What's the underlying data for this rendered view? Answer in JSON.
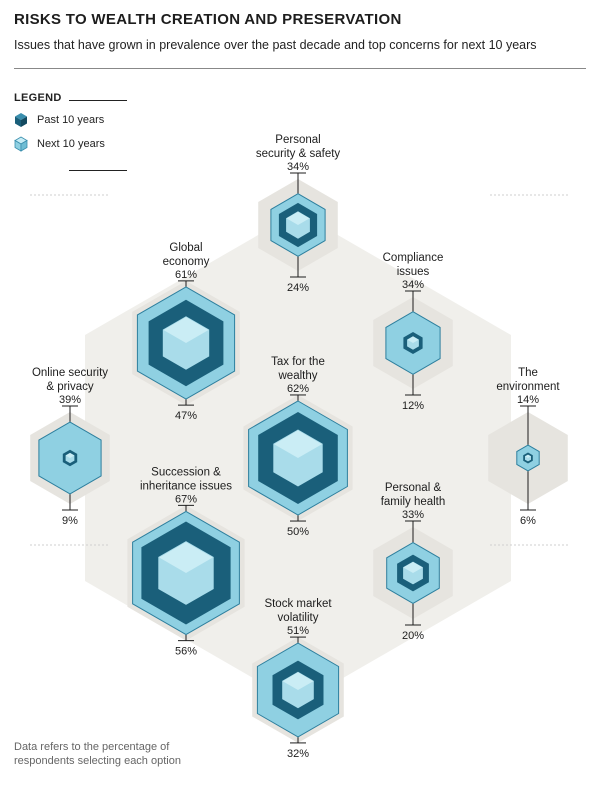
{
  "title": "RISKS TO WEALTH CREATION AND PRESERVATION",
  "subtitle": "Issues that have grown in prevalence over the past decade and top concerns for next 10 years",
  "legend": {
    "title": "LEGEND",
    "past": "Past 10 years",
    "next": "Next 10 years"
  },
  "footnote": "Data refers to the percentage of respondents selecting each option",
  "colors": {
    "past": "#1a5f7a",
    "next": "#8fd0e2",
    "hexbg": "#e6e4df",
    "track": "#f0efeb"
  },
  "chart_data": {
    "type": "hexagon-cube-comparison",
    "unit": "%",
    "series": [
      {
        "name": "Past 10 years"
      },
      {
        "name": "Next 10 years"
      }
    ],
    "items": [
      {
        "label": [
          "Personal",
          "security & safety"
        ],
        "next_label": "34%",
        "past_label": "24%",
        "next": 34,
        "past": 24
      },
      {
        "label": [
          "Global",
          "economy"
        ],
        "next_label": "61%",
        "past_label": "47%",
        "next": 61,
        "past": 47
      },
      {
        "label": [
          "Compliance",
          "issues"
        ],
        "next_label": "34%",
        "past_label": "12%",
        "next": 34,
        "past": 12
      },
      {
        "label": [
          "Online security",
          "& privacy"
        ],
        "next_label": "39%",
        "past_label": "9%",
        "next": 39,
        "past": 9
      },
      {
        "label": [
          "Tax for the",
          "wealthy"
        ],
        "next_label": "62%",
        "past_label": "50%",
        "next": 62,
        "past": 50
      },
      {
        "label": [
          "The",
          "environment"
        ],
        "next_label": "14%",
        "past_label": "6%",
        "next": 14,
        "past": 6
      },
      {
        "label": [
          "Succession &",
          "inheritance issues"
        ],
        "next_label": "67%",
        "past_label": "56%",
        "next": 67,
        "past": 56
      },
      {
        "label": [
          "Personal &",
          "family health"
        ],
        "next_label": "33%",
        "past_label": "20%",
        "next": 33,
        "past": 20
      },
      {
        "label": [
          "Stock market",
          "volatility"
        ],
        "next_label": "51%",
        "past_label": "32%",
        "next": 51,
        "past": 32
      }
    ]
  }
}
